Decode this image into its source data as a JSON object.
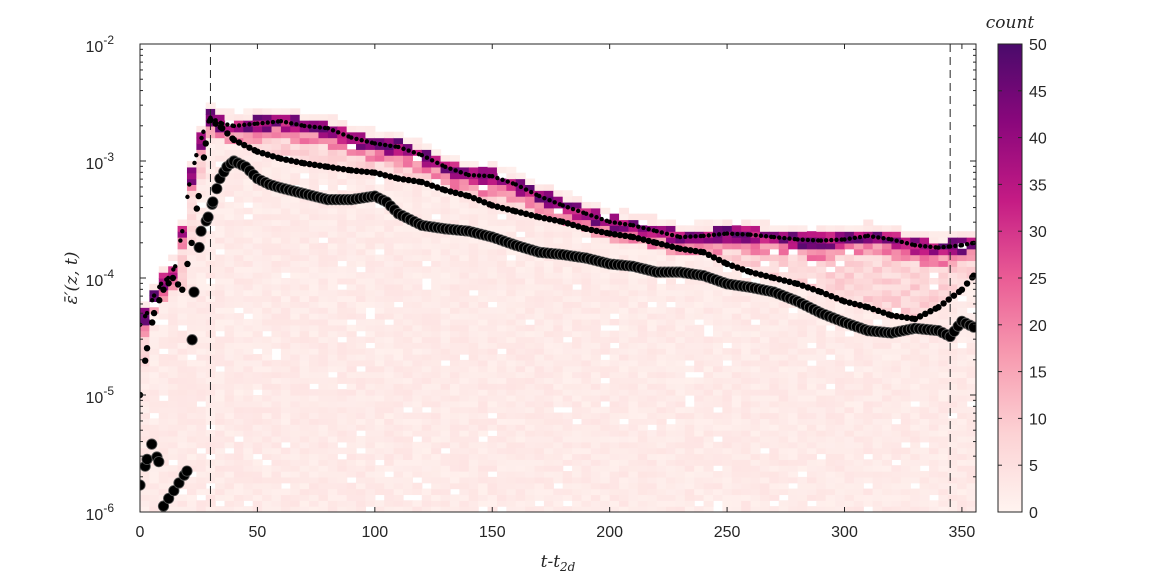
{
  "chart_data": {
    "type": "heatmap",
    "title": "",
    "xlabel": "t-t",
    "xlabel_subscript": "2d",
    "ylabel": "ε̄′(z, t)",
    "colorbar_label": "count",
    "xlim": [
      0,
      356
    ],
    "ylim_log10": [
      -6,
      -2
    ],
    "x_ticks": [
      0,
      50,
      100,
      150,
      200,
      250,
      300,
      350
    ],
    "x_tick_labels": [
      "0",
      "50",
      "100",
      "150",
      "200",
      "250",
      "300",
      "350"
    ],
    "y_ticks_log10": [
      -6,
      -5,
      -4,
      -3,
      -2
    ],
    "y_tick_base": "10",
    "y_tick_exponents": [
      "-6",
      "-5",
      "-4",
      "-3",
      "-2"
    ],
    "colorbar_ticks": [
      0,
      5,
      10,
      15,
      20,
      25,
      30,
      35,
      40,
      45,
      50
    ],
    "colorbar_tick_labels": [
      "0",
      "5",
      "10",
      "15",
      "20",
      "25",
      "30",
      "35",
      "40",
      "45",
      "50"
    ],
    "colorbar_range": [
      0,
      50
    ],
    "colormap": [
      "#fff4f0",
      "#fcd2d4",
      "#f79bb0",
      "#ea5c95",
      "#c41b84",
      "#8a077c",
      "#4a0a6b"
    ],
    "vertical_lines": [
      30,
      345
    ],
    "grid": false,
    "series": [
      {
        "marker": "small-dot",
        "color": "#000000",
        "points": [
          [
            0,
            -4.4
          ],
          [
            3,
            -4.3
          ],
          [
            6,
            -4.15
          ],
          [
            9,
            -4.05
          ],
          [
            12,
            -4.0
          ],
          [
            15,
            -3.9
          ],
          [
            18,
            -3.6
          ],
          [
            21,
            -3.2
          ],
          [
            24,
            -2.95
          ],
          [
            27,
            -2.75
          ],
          [
            30,
            -2.63
          ],
          [
            35,
            -2.68
          ],
          [
            40,
            -2.7
          ],
          [
            50,
            -2.68
          ],
          [
            60,
            -2.66
          ],
          [
            70,
            -2.7
          ],
          [
            80,
            -2.72
          ],
          [
            90,
            -2.8
          ],
          [
            100,
            -2.85
          ],
          [
            110,
            -2.88
          ],
          [
            120,
            -2.95
          ],
          [
            130,
            -3.05
          ],
          [
            140,
            -3.12
          ],
          [
            150,
            -3.13
          ],
          [
            160,
            -3.2
          ],
          [
            170,
            -3.3
          ],
          [
            180,
            -3.38
          ],
          [
            190,
            -3.45
          ],
          [
            200,
            -3.52
          ],
          [
            210,
            -3.55
          ],
          [
            220,
            -3.6
          ],
          [
            230,
            -3.65
          ],
          [
            240,
            -3.64
          ],
          [
            250,
            -3.62
          ],
          [
            260,
            -3.63
          ],
          [
            270,
            -3.65
          ],
          [
            280,
            -3.67
          ],
          [
            290,
            -3.68
          ],
          [
            300,
            -3.67
          ],
          [
            310,
            -3.64
          ],
          [
            320,
            -3.67
          ],
          [
            330,
            -3.72
          ],
          [
            340,
            -3.74
          ],
          [
            345,
            -3.73
          ],
          [
            350,
            -3.72
          ],
          [
            355,
            -3.7
          ]
        ]
      },
      {
        "marker": "medium-dot",
        "color": "#000000",
        "points": [
          [
            0,
            -5.0
          ],
          [
            3,
            -4.6
          ],
          [
            6,
            -4.3
          ],
          [
            10,
            -4.1
          ],
          [
            14,
            -4.0
          ],
          [
            18,
            -4.1
          ],
          [
            22,
            -3.7
          ],
          [
            25,
            -3.3
          ],
          [
            28,
            -2.85
          ],
          [
            30,
            -2.65
          ],
          [
            35,
            -2.72
          ],
          [
            40,
            -2.82
          ],
          [
            50,
            -2.92
          ],
          [
            60,
            -2.98
          ],
          [
            70,
            -3.02
          ],
          [
            80,
            -3.05
          ],
          [
            90,
            -3.08
          ],
          [
            100,
            -3.1
          ],
          [
            110,
            -3.15
          ],
          [
            120,
            -3.18
          ],
          [
            130,
            -3.25
          ],
          [
            140,
            -3.3
          ],
          [
            150,
            -3.38
          ],
          [
            160,
            -3.43
          ],
          [
            170,
            -3.48
          ],
          [
            180,
            -3.52
          ],
          [
            190,
            -3.58
          ],
          [
            200,
            -3.62
          ],
          [
            210,
            -3.65
          ],
          [
            220,
            -3.7
          ],
          [
            230,
            -3.75
          ],
          [
            240,
            -3.78
          ],
          [
            250,
            -3.88
          ],
          [
            260,
            -3.95
          ],
          [
            270,
            -4.0
          ],
          [
            280,
            -4.05
          ],
          [
            290,
            -4.12
          ],
          [
            300,
            -4.2
          ],
          [
            310,
            -4.25
          ],
          [
            320,
            -4.32
          ],
          [
            330,
            -4.35
          ],
          [
            340,
            -4.25
          ],
          [
            350,
            -4.1
          ],
          [
            355,
            -3.98
          ]
        ]
      },
      {
        "marker": "large-dot",
        "color": "#000000",
        "points": [
          [
            0,
            -5.77
          ],
          [
            3,
            -5.55
          ],
          [
            5,
            -5.42
          ],
          [
            8,
            -5.57
          ],
          [
            10,
            -5.95
          ],
          [
            20,
            -5.65
          ],
          [
            23,
            -4.12
          ],
          [
            26,
            -3.6
          ],
          [
            29,
            -3.48
          ],
          [
            31,
            -3.35
          ],
          [
            34,
            -3.15
          ],
          [
            37,
            -3.05
          ],
          [
            40,
            -3.0
          ],
          [
            45,
            -3.05
          ],
          [
            50,
            -3.15
          ],
          [
            55,
            -3.2
          ],
          [
            60,
            -3.23
          ],
          [
            70,
            -3.28
          ],
          [
            80,
            -3.33
          ],
          [
            90,
            -3.33
          ],
          [
            100,
            -3.3
          ],
          [
            105,
            -3.35
          ],
          [
            110,
            -3.45
          ],
          [
            120,
            -3.55
          ],
          [
            130,
            -3.58
          ],
          [
            140,
            -3.6
          ],
          [
            150,
            -3.65
          ],
          [
            160,
            -3.72
          ],
          [
            170,
            -3.78
          ],
          [
            180,
            -3.8
          ],
          [
            190,
            -3.83
          ],
          [
            200,
            -3.88
          ],
          [
            210,
            -3.9
          ],
          [
            220,
            -3.95
          ],
          [
            230,
            -3.95
          ],
          [
            240,
            -3.98
          ],
          [
            250,
            -4.05
          ],
          [
            260,
            -4.08
          ],
          [
            270,
            -4.12
          ],
          [
            280,
            -4.2
          ],
          [
            290,
            -4.3
          ],
          [
            300,
            -4.38
          ],
          [
            310,
            -4.45
          ],
          [
            320,
            -4.47
          ],
          [
            330,
            -4.43
          ],
          [
            340,
            -4.45
          ],
          [
            345,
            -4.5
          ],
          [
            350,
            -4.37
          ],
          [
            355,
            -4.42
          ]
        ]
      }
    ]
  }
}
